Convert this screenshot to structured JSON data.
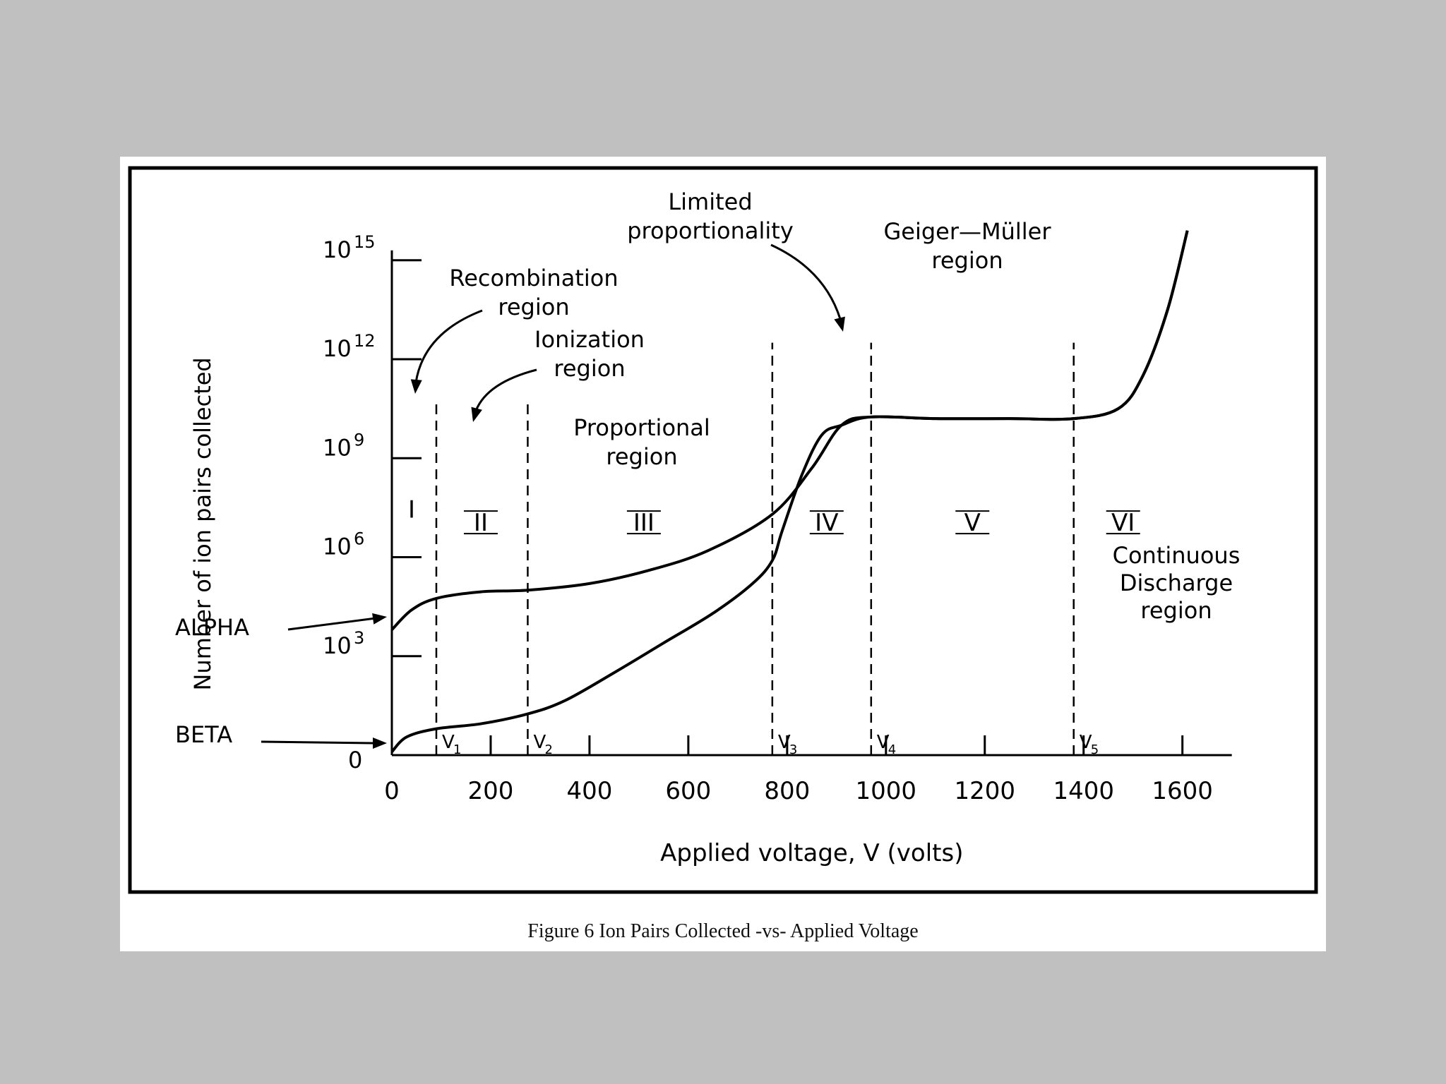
{
  "chart_data": {
    "type": "line",
    "title": "",
    "xlabel": "Applied voltage, V (volts)",
    "ylabel": "Number of ion pairs collected",
    "xlim": [
      0,
      1700
    ],
    "ylim": [
      0,
      15
    ],
    "x_ticks": [
      {
        "value": 0,
        "label": "0"
      },
      {
        "value": 200,
        "label": "200"
      },
      {
        "value": 400,
        "label": "400"
      },
      {
        "value": 600,
        "label": "600"
      },
      {
        "value": 800,
        "label": "800"
      },
      {
        "value": 1000,
        "label": "1000"
      },
      {
        "value": 1200,
        "label": "1200"
      },
      {
        "value": 1400,
        "label": "1400"
      },
      {
        "value": 1600,
        "label": "1600"
      }
    ],
    "y_ticks": [
      {
        "value": 0,
        "base": "0",
        "exp": ""
      },
      {
        "value": 3,
        "base": "10",
        "exp": "3"
      },
      {
        "value": 6,
        "base": "10",
        "exp": "6"
      },
      {
        "value": 9,
        "base": "10",
        "exp": "9"
      },
      {
        "value": 12,
        "base": "10",
        "exp": "12"
      },
      {
        "value": 15,
        "base": "10",
        "exp": "15"
      }
    ],
    "region_boundaries": [
      {
        "x": 90,
        "label": "V1"
      },
      {
        "x": 275,
        "label": "V2"
      },
      {
        "x": 770,
        "label": "V3"
      },
      {
        "x": 970,
        "label": "V4"
      },
      {
        "x": 1380,
        "label": "V5"
      }
    ],
    "regions": [
      {
        "numeral": "I",
        "x": 40
      },
      {
        "numeral": "II",
        "x": 180
      },
      {
        "numeral": "III",
        "x": 510
      },
      {
        "numeral": "IV",
        "x": 880
      },
      {
        "numeral": "V",
        "x": 1175
      },
      {
        "numeral": "VI",
        "x": 1480
      }
    ],
    "series": [
      {
        "name": "ALPHA",
        "x": [
          0,
          40,
          90,
          180,
          275,
          400,
          520,
          640,
          770,
          850,
          910,
          970,
          1100,
          1250,
          1380,
          1470,
          1520,
          1570,
          1610
        ],
        "y": [
          3.8,
          4.4,
          4.75,
          4.95,
          5.0,
          5.2,
          5.6,
          6.2,
          7.3,
          8.7,
          10.0,
          10.25,
          10.2,
          10.2,
          10.2,
          10.5,
          11.5,
          13.5,
          15.9
        ]
      },
      {
        "name": "BETA",
        "x": [
          0,
          30,
          90,
          180,
          275,
          350,
          450,
          550,
          650,
          730,
          770,
          790,
          830,
          870,
          910,
          970,
          1100,
          1250,
          1380,
          1470,
          1520,
          1570,
          1610
        ],
        "y": [
          0.1,
          0.55,
          0.8,
          0.95,
          1.25,
          1.65,
          2.5,
          3.4,
          4.3,
          5.2,
          5.9,
          6.8,
          8.5,
          9.7,
          10.0,
          10.25,
          10.2,
          10.2,
          10.2,
          10.5,
          11.5,
          13.5,
          15.9
        ]
      }
    ],
    "annotations": [
      {
        "name": "recombination",
        "lines": [
          "Recombination",
          "region"
        ]
      },
      {
        "name": "ionization",
        "lines": [
          "Ionization",
          "region"
        ]
      },
      {
        "name": "proportional",
        "lines": [
          "Proportional",
          "region"
        ]
      },
      {
        "name": "limited",
        "lines": [
          "Limited",
          "proportionality"
        ]
      },
      {
        "name": "geiger",
        "lines": [
          "Geiger—Müller",
          "region"
        ]
      },
      {
        "name": "continuous",
        "lines": [
          "Continuous",
          "Discharge",
          "region"
        ]
      }
    ],
    "grid": false,
    "legend": "none"
  },
  "caption": "Figure 6  Ion Pairs Collected -vs- Applied Voltage"
}
